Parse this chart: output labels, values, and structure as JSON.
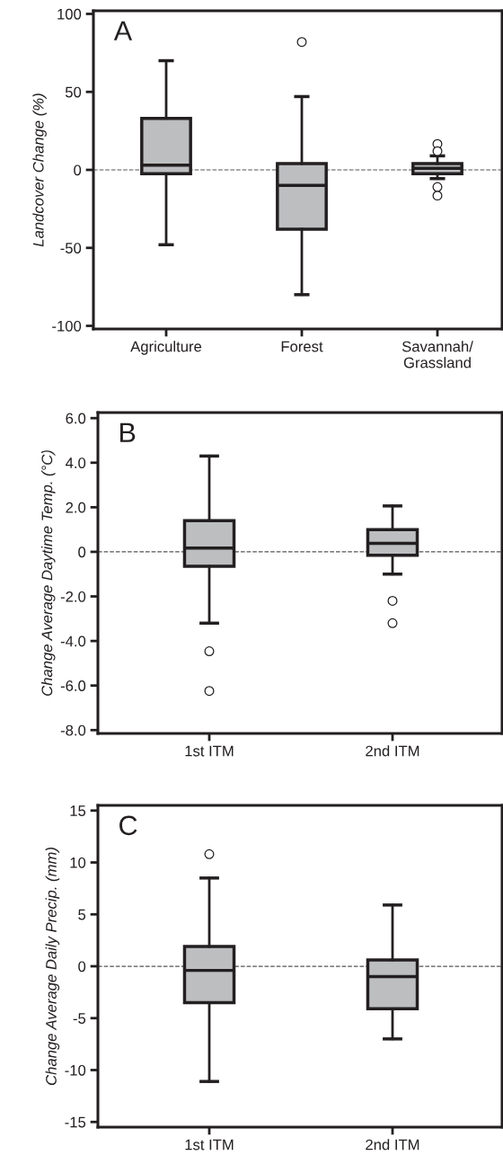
{
  "chart_data": [
    {
      "type": "box",
      "ylabel": "Landcover Change (%)",
      "annotations": [
        "A"
      ],
      "categories": [
        "Agriculture",
        "Forest",
        "Savannah/\nGrassland"
      ],
      "boxes": [
        {
          "low": -48,
          "q1": -2.5,
          "median": 3,
          "q3": 33,
          "high": 70
        },
        {
          "low": -80,
          "q1": -38,
          "median": -10,
          "q3": 4,
          "high": 47,
          "outliers": [
            82
          ]
        },
        {
          "low": -5.6,
          "q1": -2.5,
          "median": 1,
          "q3": 4,
          "high": 9,
          "outliers": [
            16.6,
            12,
            -11,
            -16.5
          ]
        }
      ],
      "color": "#bcbec0",
      "ylim": [
        -102,
        102
      ],
      "yticks": [
        -100,
        -50,
        0,
        50,
        100
      ],
      "ref_lines": [
        {
          "axis": "y",
          "value": 0,
          "line_style": "dashed"
        }
      ],
      "grid": false
    },
    {
      "type": "box",
      "ylabel": "Change Average Daytime Temp. (°C)",
      "annotations": [
        "B"
      ],
      "categories": [
        "1st ITM",
        "2nd ITM"
      ],
      "boxes": [
        {
          "low": -3.2,
          "q1": -0.65,
          "median": 0.17,
          "q3": 1.4,
          "high": 4.3,
          "outliers": [
            -4.46,
            -6.24
          ]
        },
        {
          "low": -1.0,
          "q1": -0.15,
          "median": 0.38,
          "q3": 1.0,
          "high": 2.06,
          "outliers": [
            -2.2,
            -3.2
          ]
        }
      ],
      "color": "#bcbec0",
      "ylim": [
        -8.15,
        6.25
      ],
      "yticks": [
        {
          "value": -8,
          "label": "-8.0"
        },
        {
          "value": -6,
          "label": "-6.0"
        },
        {
          "value": -4,
          "label": "-4.0"
        },
        {
          "value": -2,
          "label": "-2.0"
        },
        0,
        {
          "value": 2,
          "label": "2.0"
        },
        {
          "value": 4,
          "label": "4.0"
        },
        {
          "value": 6,
          "label": "6.0"
        }
      ],
      "ref_lines": [
        {
          "axis": "y",
          "value": 0,
          "line_style": "dashed"
        }
      ],
      "grid": false
    },
    {
      "type": "box",
      "ylabel": "Change Average Daily Precip. (mm)",
      "annotations": [
        "C"
      ],
      "categories": [
        "1st ITM",
        "2nd ITM"
      ],
      "boxes": [
        {
          "low": -11.1,
          "q1": -3.5,
          "median": -0.4,
          "q3": 1.9,
          "high": 8.5,
          "outliers": [
            10.8
          ]
        },
        {
          "low": -7.0,
          "q1": -4.1,
          "median": -1.0,
          "q3": 0.6,
          "high": 5.9
        }
      ],
      "color": "#bcbec0",
      "ylim": [
        -15.5,
        15.5
      ],
      "yticks": [
        -15,
        -10,
        -5,
        0,
        5,
        10,
        15
      ],
      "ref_lines": [
        {
          "axis": "y",
          "value": 0,
          "line_style": "dashed"
        }
      ],
      "grid": false
    }
  ]
}
